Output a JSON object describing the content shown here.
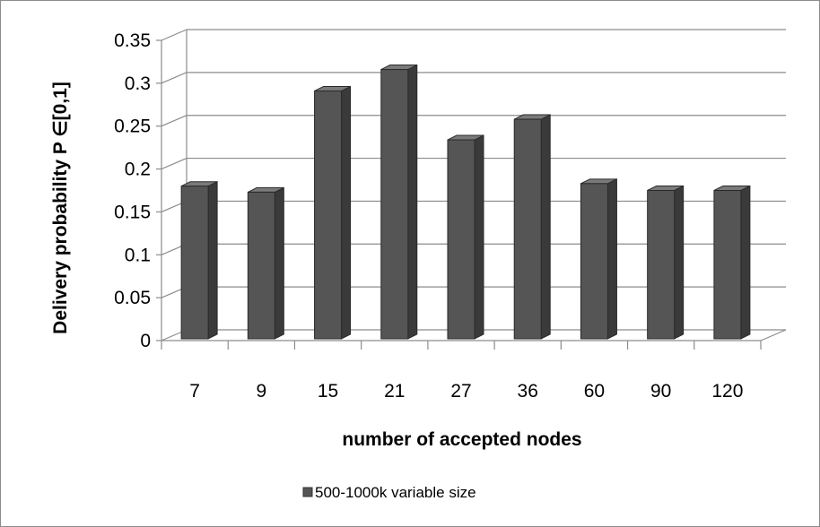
{
  "chart_data": {
    "type": "bar",
    "categories": [
      "7",
      "9",
      "15",
      "21",
      "27",
      "36",
      "60",
      "90",
      "120"
    ],
    "series": [
      {
        "name": "500-1000k variable size",
        "values": [
          0.18,
          0.173,
          0.291,
          0.316,
          0.234,
          0.258,
          0.183,
          0.175,
          0.175
        ]
      }
    ],
    "xlabel": "number of accepted nodes",
    "ylabel": "Delivery probability P ∈[0,1]",
    "ylim": [
      0,
      0.35
    ],
    "yticks": [
      "0",
      "0.05",
      "0.1",
      "0.15",
      "0.2",
      "0.25",
      "0.3",
      "0.35"
    ],
    "grid": true,
    "legend": "bottom",
    "bar_color": "#555555"
  }
}
